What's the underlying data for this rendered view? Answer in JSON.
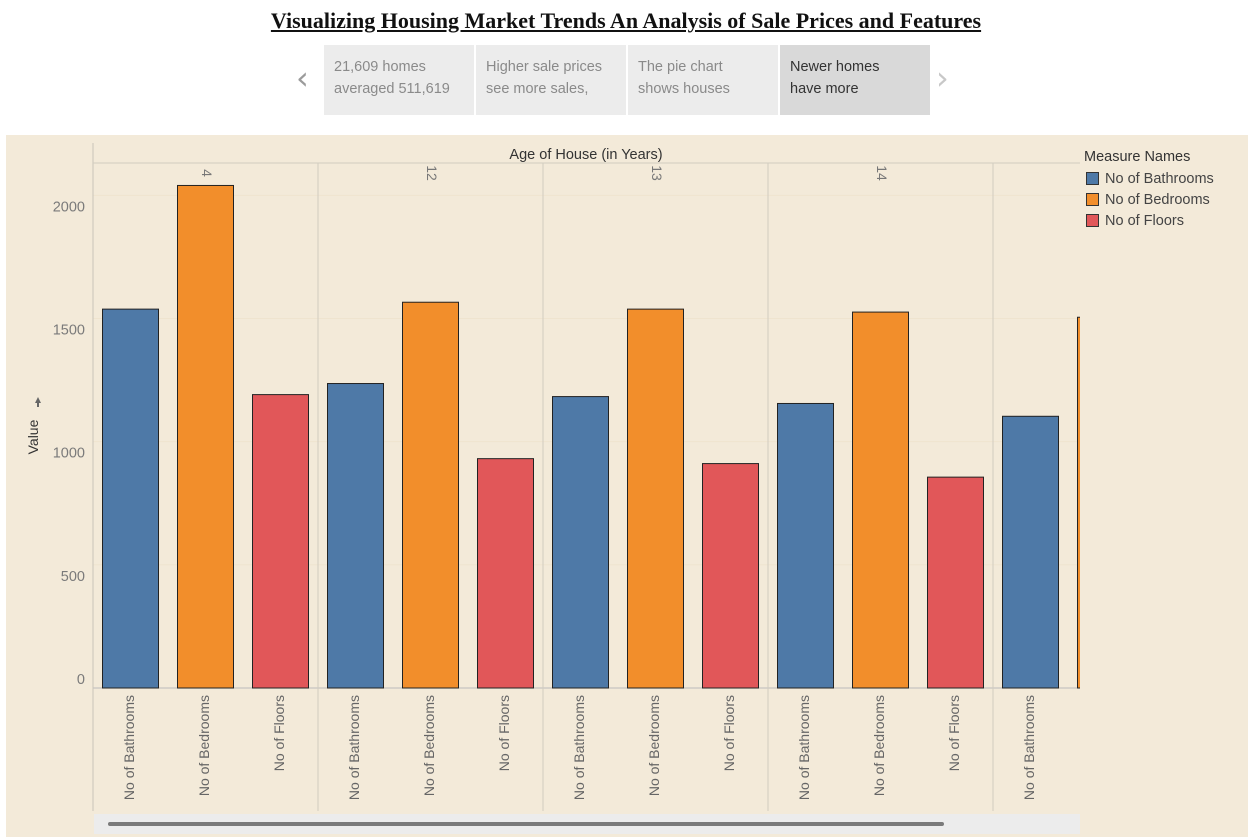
{
  "title": "Visualizing Housing Market Trends An Analysis of Sale Prices and Features",
  "story": {
    "prev_icon": "chevron-left-icon",
    "next_icon": "chevron-right-icon",
    "cards": [
      {
        "line1": "21,609 homes",
        "line2": "averaged 511,619"
      },
      {
        "line1": "Higher sale prices",
        "line2": "see more sales,"
      },
      {
        "line1": "The pie chart",
        "line2": "shows houses"
      },
      {
        "line1": "Newer homes",
        "line2": "have more"
      }
    ],
    "active_index": 3
  },
  "legend": {
    "title": "Measure Names",
    "items": [
      {
        "label": "No of Bathrooms",
        "color": "#4e79a7"
      },
      {
        "label": "No of Bedrooms",
        "color": "#f28e2b"
      },
      {
        "label": "No of Floors",
        "color": "#e15759"
      }
    ]
  },
  "chart_data": {
    "type": "bar",
    "column_header": "Age of House (in Years)",
    "ylabel": "Value",
    "ylim": [
      0,
      2050
    ],
    "yticks": [
      0,
      500,
      1000,
      1500,
      2000
    ],
    "grid": true,
    "legend_position": "right",
    "groups": [
      "4",
      "12",
      "13",
      "14",
      ""
    ],
    "measures": [
      "No of Bathrooms",
      "No of Bedrooms",
      "No of Floors"
    ],
    "series": [
      {
        "name": "No of Bathrooms",
        "values": [
          1538,
          1236,
          1183,
          1155,
          1103
        ]
      },
      {
        "name": "No of Bedrooms",
        "values": [
          2040,
          1566,
          1538,
          1526,
          1505
        ]
      },
      {
        "name": "No of Floors",
        "values": [
          1191,
          931,
          911,
          856,
          null
        ]
      }
    ]
  }
}
